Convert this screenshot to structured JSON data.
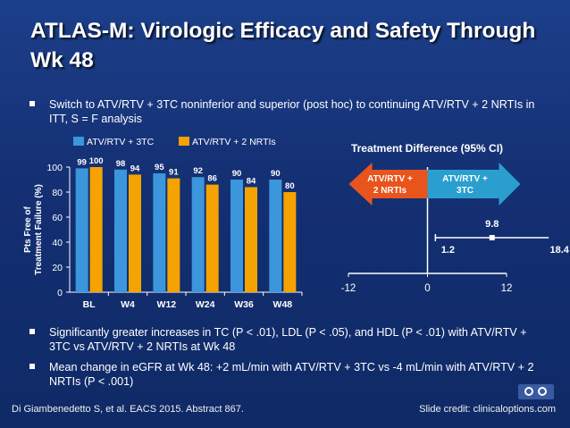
{
  "title": "ATLAS-M: Virologic Efficacy and Safety Through Wk 48",
  "bullets": {
    "b1": "Switch to ATV/RTV + 3TC noninferior and superior (post hoc) to continuing ATV/RTV + 2 NRTIs in ITT, S = F analysis",
    "b2": "Significantly greater increases in TC (P < .01), LDL (P < .05), and HDL (P < .01) with ATV/RTV + 3TC vs ATV/RTV + 2 NRTIs at Wk 48",
    "b3": "Mean change in eGFR at Wk 48: +2 mL/min with ATV/RTV + 3TC vs -4 mL/min with ATV/RTV + 2 NRTIs (P < .001)"
  },
  "footer": {
    "citation": "Di Giambenedetto S, et al. EACS 2015. Abstract 867.",
    "credit": "Slide credit: clinicaloptions.com"
  },
  "colors": {
    "series1": "#3b96dc",
    "series2": "#f5a300",
    "forest_left": "#e8541c",
    "forest_right": "#2a9fcf"
  },
  "chart_data": [
    {
      "type": "bar",
      "title": "",
      "xlabel": "",
      "ylabel": "Pts Free of Treatment Failure (%)",
      "ylim": [
        0,
        100
      ],
      "yticks": [
        0,
        20,
        40,
        60,
        80,
        100
      ],
      "categories": [
        "BL",
        "W4",
        "W12",
        "W24",
        "W36",
        "W48"
      ],
      "series": [
        {
          "name": "ATV/RTV + 3TC",
          "values": [
            99,
            98,
            95,
            92,
            90,
            90
          ]
        },
        {
          "name": "ATV/RTV + 2 NRTIs",
          "values": [
            100,
            94,
            91,
            86,
            84,
            80
          ]
        }
      ],
      "legend": "top"
    },
    {
      "type": "scatter",
      "title": "Treatment Difference (95% CI)",
      "xlim": [
        -12,
        12
      ],
      "xticks": [
        -12,
        0,
        12
      ],
      "estimate": 9.8,
      "ci_lower": 1.2,
      "ci_upper": 18.4,
      "left_label": "ATV/RTV + 2 NRTIs",
      "right_label": "ATV/RTV + 3TC"
    }
  ]
}
